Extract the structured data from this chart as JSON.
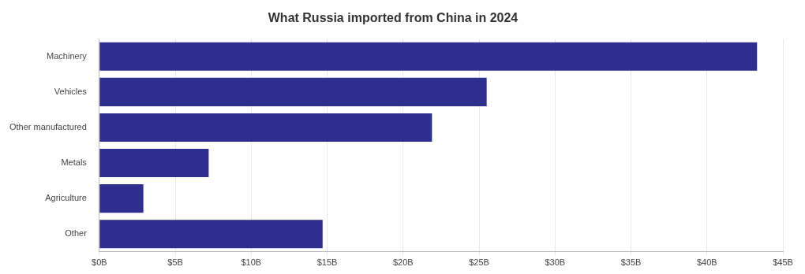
{
  "chart_data": {
    "type": "bar",
    "orientation": "horizontal",
    "title": "What Russia imported from China in 2024",
    "categories": [
      "Machinery",
      "Vehicles",
      "Other manufactured",
      "Metals",
      "Agriculture",
      "Other"
    ],
    "values": [
      43.3,
      25.5,
      21.9,
      7.2,
      2.9,
      14.7
    ],
    "color": "#2e2e8f",
    "xlim": [
      0,
      45
    ],
    "xticks": [
      {
        "value": 0,
        "label": "$0B"
      },
      {
        "value": 5,
        "label": "$5B"
      },
      {
        "value": 10,
        "label": "$10B"
      },
      {
        "value": 15,
        "label": "$15B"
      },
      {
        "value": 20,
        "label": "$20B"
      },
      {
        "value": 25,
        "label": "$25B"
      },
      {
        "value": 30,
        "label": "$30B"
      },
      {
        "value": 35,
        "label": "$35B"
      },
      {
        "value": 40,
        "label": "$40B"
      },
      {
        "value": 45,
        "label": "$45B"
      }
    ],
    "grid": "x",
    "legend": false
  }
}
